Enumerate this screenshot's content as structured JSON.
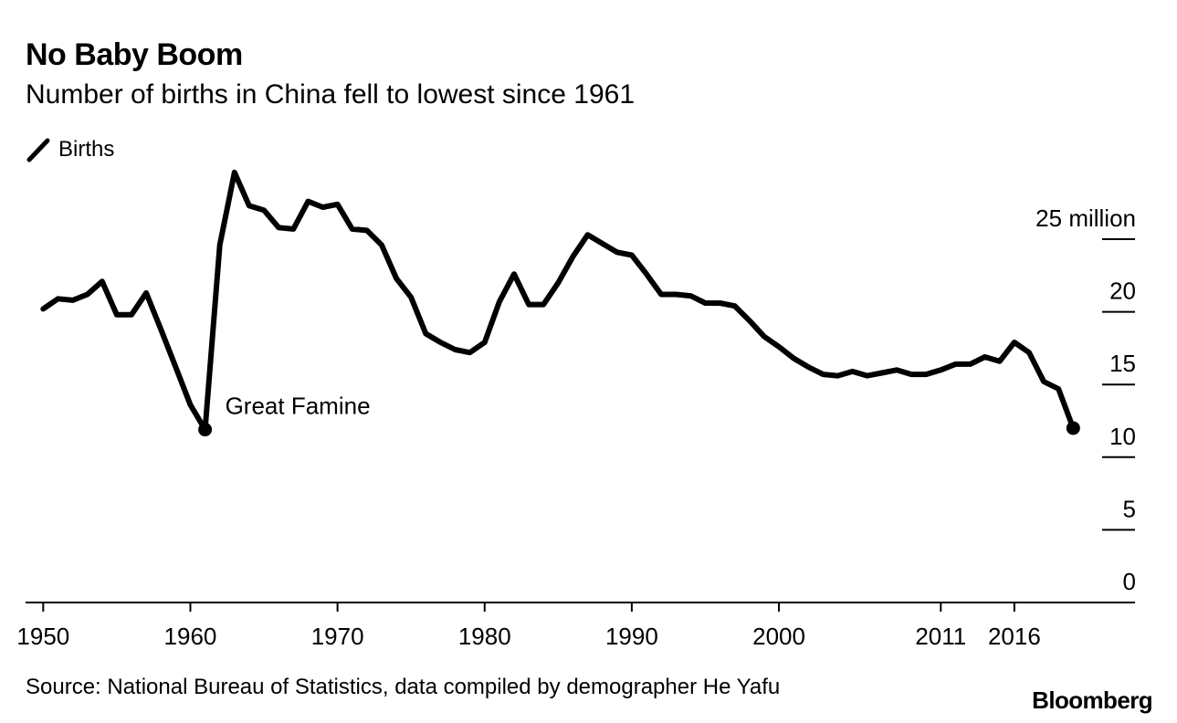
{
  "chart_data": {
    "type": "line",
    "title": "No Baby Boom",
    "subtitle": "Number of births in China fell to lowest since 1961",
    "legend": [
      {
        "name": "Births",
        "icon": "line-swatch-icon"
      }
    ],
    "ylabel": "",
    "y_unit_label": "25 million",
    "ylim": [
      0,
      25
    ],
    "y_ticks": [
      {
        "value": 25,
        "label": "25 million"
      },
      {
        "value": 20,
        "label": "20"
      },
      {
        "value": 15,
        "label": "15"
      },
      {
        "value": 10,
        "label": "10"
      },
      {
        "value": 5,
        "label": "5"
      },
      {
        "value": 0,
        "label": "0"
      }
    ],
    "xlim": [
      1948.8,
      2024.2
    ],
    "x_ticks": [
      {
        "value": 1950,
        "label": "1950"
      },
      {
        "value": 1960,
        "label": "1960"
      },
      {
        "value": 1970,
        "label": "1970"
      },
      {
        "value": 1980,
        "label": "1980"
      },
      {
        "value": 1990,
        "label": "1990"
      },
      {
        "value": 2000,
        "label": "2000"
      },
      {
        "value": 2011,
        "label": "2011"
      },
      {
        "value": 2016,
        "label": "2016"
      }
    ],
    "series": [
      {
        "name": "Births",
        "color": "#000000",
        "x": [
          1950,
          1951,
          1952,
          1953,
          1954,
          1955,
          1956,
          1957,
          1958,
          1959,
          1960,
          1961,
          1962,
          1963,
          1964,
          1965,
          1966,
          1967,
          1968,
          1969,
          1970,
          1971,
          1972,
          1973,
          1974,
          1975,
          1976,
          1977,
          1978,
          1979,
          1980,
          1981,
          1982,
          1983,
          1984,
          1985,
          1986,
          1987,
          1988,
          1989,
          1990,
          1991,
          1992,
          1993,
          1994,
          1995,
          1996,
          1997,
          1998,
          1999,
          2000,
          2001,
          2002,
          2003,
          2004,
          2005,
          2006,
          2007,
          2008,
          2009,
          2010,
          2011,
          2012,
          2013,
          2014,
          2015,
          2016,
          2017,
          2018,
          2019,
          2020
        ],
        "values": [
          20.2,
          20.9,
          20.8,
          21.2,
          22.1,
          19.8,
          19.8,
          21.3,
          18.8,
          16.2,
          13.6,
          11.9,
          24.6,
          29.6,
          27.3,
          27.0,
          25.8,
          25.7,
          27.6,
          27.2,
          27.4,
          25.7,
          25.6,
          24.6,
          22.3,
          21.0,
          18.5,
          17.9,
          17.4,
          17.2,
          17.9,
          20.7,
          22.6,
          20.5,
          20.5,
          22.0,
          23.8,
          25.3,
          24.7,
          24.1,
          23.9,
          22.6,
          21.2,
          21.2,
          21.1,
          20.6,
          20.6,
          20.4,
          19.4,
          18.3,
          17.6,
          16.8,
          16.2,
          15.7,
          15.6,
          15.9,
          15.6,
          15.8,
          16.0,
          15.7,
          15.7,
          16.0,
          16.4,
          16.4,
          16.9,
          16.6,
          17.9,
          17.2,
          15.2,
          14.7,
          12.0
        ]
      }
    ],
    "annotations": [
      {
        "text": "Great Famine",
        "x": 1961,
        "y": 11.9
      },
      {
        "text": "",
        "x": 2020,
        "y": 12.0
      }
    ],
    "grid": false
  },
  "source": "Source: National Bureau of Statistics, data compiled by demographer He Yafu",
  "brand": "Bloomberg"
}
